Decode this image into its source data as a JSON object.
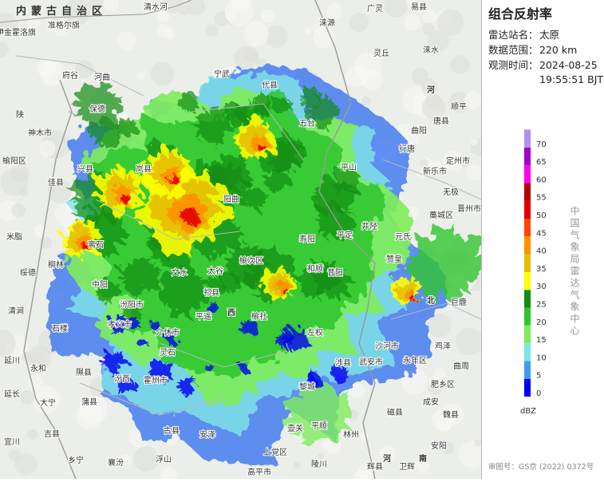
{
  "panel": {
    "title": "组合反射率",
    "station_label": "雷达站名：",
    "station": "太原",
    "range_label": "数据范围：",
    "range": "220 km",
    "time_label": "观测时间：",
    "date": "2024-08-25",
    "time": "19:55:51 BJT",
    "agency": "中国气象局雷达气象中心",
    "approval": "审图号：GS京 (2022) 0372号"
  },
  "legend": {
    "unit": "dBZ",
    "ticks": [
      0,
      5,
      10,
      15,
      20,
      25,
      30,
      35,
      40,
      45,
      50,
      55,
      60,
      65,
      70
    ],
    "colors": [
      "#0000f0",
      "#3c9cf0",
      "#7ee6e6",
      "#7eed5a",
      "#2ec62e",
      "#148c14",
      "#ffff00",
      "#e6be00",
      "#ff9000",
      "#ff4500",
      "#e60000",
      "#b40000",
      "#ff00f0",
      "#a000c8",
      "#b090f0"
    ]
  },
  "map": {
    "region": "内蒙古自治区",
    "places": [
      "清水河",
      "广灵",
      "涞源",
      "易县",
      "灵丘",
      "涞水",
      "顺平",
      "唐县",
      "曲阳",
      "定州市",
      "行唐",
      "新乐市",
      "无极",
      "平山",
      "晋州市",
      "藁城区",
      "元氏",
      "赞皇",
      "平定",
      "井陉",
      "寿阳",
      "五台",
      "代县",
      "宁武",
      "岚县",
      "兴县",
      "离石",
      "柳林",
      "中阳",
      "文水",
      "汾阳市",
      "孝义市",
      "介休市",
      "平遥",
      "祁县",
      "太谷",
      "榆次区",
      "和顺",
      "昔阳",
      "左权",
      "榆社",
      "灵石",
      "霍州市",
      "汾西",
      "隰县",
      "永和",
      "石楼",
      "大宁",
      "蒲县",
      "吉县",
      "乡宁",
      "襄汾",
      "浮山",
      "古县",
      "安泽",
      "黎城",
      "涉县",
      "武安市",
      "永年区",
      "曲周",
      "肥乡区",
      "成安",
      "磁县",
      "魏县",
      "安阳",
      "林州",
      "平顺",
      "壶关",
      "上党区",
      "高平市",
      "陵川",
      "辉县",
      "卫辉",
      "巨鹿",
      "鸡泽",
      "沙河市",
      "伊金霍洛旗",
      "准格尔旗",
      "府谷",
      "河曲",
      "保德",
      "神木市",
      "榆阳区",
      "佳县",
      "米脂",
      "绥德",
      "清涧",
      "延川",
      "延长",
      "宜川",
      "阳曲",
      "陕",
      "西",
      "河",
      "河",
      "南",
      "北"
    ]
  }
}
